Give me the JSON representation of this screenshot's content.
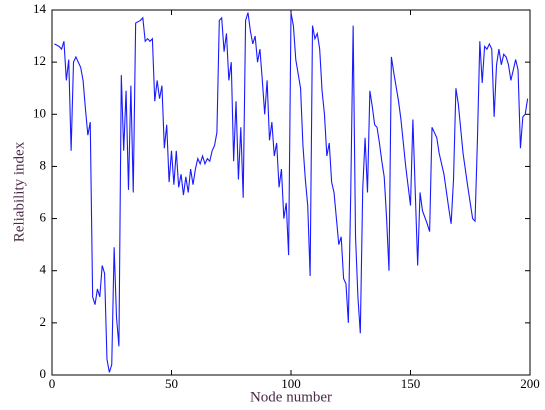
{
  "chart_data": {
    "type": "line",
    "x_label": "Node number",
    "y_label": "Reliability index",
    "x": [
      1,
      3,
      4,
      5,
      6,
      7,
      8,
      9,
      10,
      12,
      13,
      14,
      15,
      16,
      17,
      18,
      19,
      20,
      21,
      22,
      23,
      24,
      25,
      26,
      27,
      28,
      29,
      30,
      31,
      32,
      33,
      34,
      35,
      37,
      38,
      39,
      40,
      41,
      42,
      43,
      44,
      45,
      46,
      47,
      48,
      49,
      50,
      51,
      52,
      53,
      54,
      55,
      56,
      57,
      58,
      59,
      60,
      61,
      62,
      63,
      64,
      65,
      66,
      67,
      68,
      69,
      70,
      71,
      72,
      73,
      74,
      75,
      76,
      77,
      78,
      79,
      80,
      81,
      82,
      83,
      84,
      85,
      86,
      87,
      88,
      89,
      90,
      91,
      92,
      93,
      94,
      95,
      96,
      97,
      98,
      99,
      100,
      101,
      102,
      104,
      105,
      106,
      107,
      108,
      109,
      110,
      111,
      112,
      113,
      114,
      115,
      116,
      117,
      118,
      119,
      120,
      121,
      122,
      123,
      124,
      125,
      126,
      127,
      128,
      129,
      130,
      131,
      132,
      133,
      134,
      135,
      136,
      137,
      138,
      139,
      140,
      141,
      142,
      143,
      145,
      146,
      148,
      150,
      151,
      152,
      153,
      154,
      155,
      157,
      158,
      159,
      161,
      162,
      164,
      166,
      167,
      168,
      169,
      170,
      172,
      174,
      176,
      177,
      178,
      179,
      180,
      181,
      182,
      183,
      184,
      185,
      186,
      187,
      188,
      189,
      190,
      191,
      192,
      193,
      194,
      195,
      196,
      197,
      198,
      199
    ],
    "series": [
      {
        "color": "#1a1aff",
        "values": [
          12.7,
          12.6,
          12.5,
          12.8,
          11.3,
          12.1,
          8.6,
          12.0,
          12.2,
          11.8,
          11.3,
          10.2,
          9.2,
          9.7,
          3.0,
          2.7,
          3.3,
          3.0,
          4.2,
          3.9,
          0.6,
          0.1,
          0.4,
          4.9,
          2.2,
          1.1,
          11.5,
          8.6,
          10.9,
          7.1,
          11.1,
          7.0,
          13.5,
          13.6,
          13.7,
          12.8,
          12.9,
          12.8,
          12.9,
          10.5,
          11.3,
          10.6,
          11.1,
          8.7,
          9.6,
          7.4,
          8.6,
          7.3,
          8.6,
          7.2,
          7.7,
          6.9,
          7.6,
          7.0,
          7.9,
          7.3,
          7.9,
          8.3,
          8.1,
          8.4,
          8.1,
          8.3,
          8.2,
          8.6,
          8.8,
          9.3,
          13.6,
          13.7,
          12.4,
          13.1,
          11.3,
          12.0,
          8.2,
          10.5,
          7.5,
          9.5,
          6.8,
          13.6,
          13.9,
          13.2,
          12.7,
          13.0,
          12.0,
          12.5,
          11.3,
          10.0,
          11.3,
          9.0,
          9.7,
          8.4,
          8.9,
          7.2,
          7.9,
          6.0,
          6.6,
          4.6,
          13.9,
          13.4,
          12.1,
          11.0,
          8.8,
          7.5,
          6.5,
          3.8,
          13.4,
          12.9,
          13.1,
          12.5,
          10.9,
          10.0,
          8.4,
          8.9,
          7.4,
          7.0,
          6.0,
          5.0,
          5.3,
          3.7,
          3.5,
          2.0,
          7.0,
          13.4,
          5.3,
          3.0,
          1.6,
          7.1,
          9.1,
          7.0,
          10.9,
          10.3,
          9.6,
          9.5,
          8.9,
          8.2,
          7.6,
          6.0,
          4.0,
          12.2,
          11.6,
          10.5,
          9.8,
          8.0,
          6.5,
          9.8,
          7.0,
          4.2,
          7.0,
          6.3,
          5.8,
          5.5,
          9.5,
          9.1,
          8.5,
          7.7,
          6.4,
          5.8,
          7.5,
          11.0,
          10.4,
          8.5,
          7.2,
          6.0,
          5.9,
          9.0,
          12.8,
          11.2,
          12.6,
          12.5,
          12.7,
          12.5,
          9.9,
          11.9,
          12.5,
          11.9,
          12.3,
          12.2,
          11.9,
          11.3,
          11.7,
          12.1,
          11.7,
          8.7,
          9.9,
          10.0,
          10.6
        ]
      }
    ],
    "xlim": [
      0,
      200
    ],
    "xticks": [
      0,
      50,
      100,
      150,
      200
    ],
    "ylim": [
      0,
      14
    ],
    "yticks": [
      0,
      2,
      4,
      6,
      8,
      10,
      12,
      14
    ]
  }
}
